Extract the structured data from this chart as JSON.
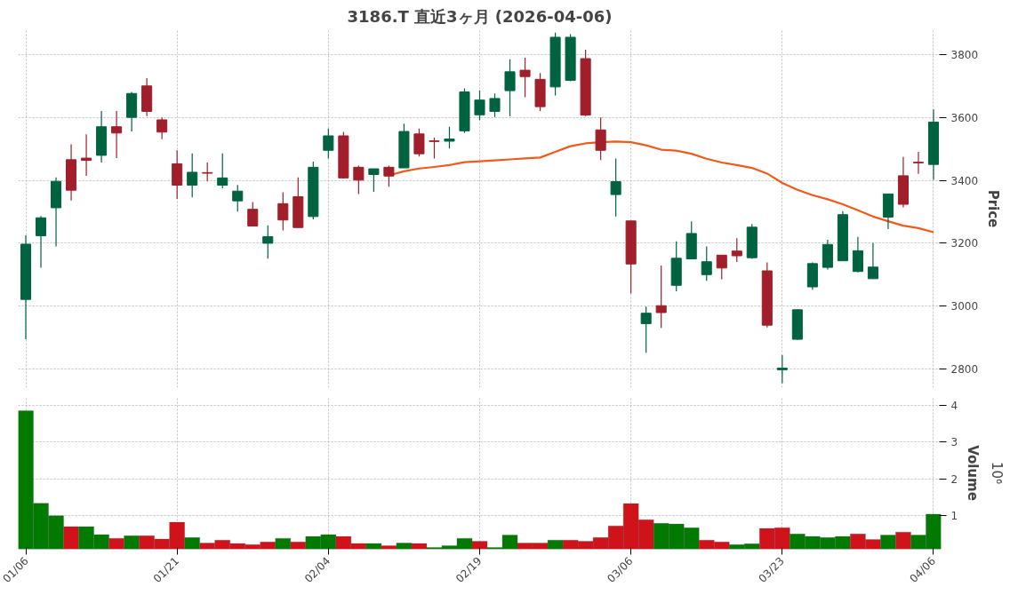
{
  "chart_data": [
    {
      "type": "candlestick",
      "title": "3186.T 直近3ヶ月 (2026-04-06)",
      "ylabel": "Price",
      "ohlc": [
        [
          3021,
          3225,
          2894,
          3197
        ],
        [
          3224,
          3287,
          3122,
          3281
        ],
        [
          3313,
          3410,
          3190,
          3397
        ],
        [
          3466,
          3515,
          3336,
          3369
        ],
        [
          3471,
          3547,
          3415,
          3464
        ],
        [
          3480,
          3621,
          3457,
          3571
        ],
        [
          3571,
          3621,
          3471,
          3551
        ],
        [
          3601,
          3682,
          3556,
          3677
        ],
        [
          3701,
          3726,
          3605,
          3620
        ],
        [
          3593,
          3601,
          3531,
          3554
        ],
        [
          3453,
          3496,
          3341,
          3385
        ],
        [
          3385,
          3486,
          3346,
          3426
        ],
        [
          3425,
          3457,
          3397,
          3423
        ],
        [
          3385,
          3486,
          3375,
          3408
        ],
        [
          3335,
          3386,
          3301,
          3366
        ],
        [
          3308,
          3331,
          3255,
          3255
        ],
        [
          3200,
          3257,
          3151,
          3221
        ],
        [
          3326,
          3362,
          3241,
          3274
        ],
        [
          3348,
          3410,
          3250,
          3250
        ],
        [
          3285,
          3460,
          3276,
          3442
        ],
        [
          3496,
          3565,
          3470,
          3542
        ],
        [
          3542,
          3555,
          3406,
          3408
        ],
        [
          3442,
          3447,
          3357,
          3401
        ],
        [
          3419,
          3437,
          3364,
          3437
        ],
        [
          3442,
          3447,
          3380,
          3414
        ],
        [
          3440,
          3581,
          3440,
          3556
        ],
        [
          3548,
          3565,
          3476,
          3485
        ],
        [
          3526,
          3536,
          3470,
          3524
        ],
        [
          3525,
          3571,
          3502,
          3532
        ],
        [
          3558,
          3693,
          3551,
          3682
        ],
        [
          3609,
          3687,
          3592,
          3656
        ],
        [
          3620,
          3677,
          3602,
          3661
        ],
        [
          3686,
          3786,
          3605,
          3746
        ],
        [
          3751,
          3791,
          3665,
          3731
        ],
        [
          3722,
          3742,
          3621,
          3635
        ],
        [
          3698,
          3871,
          3671,
          3856
        ],
        [
          3719,
          3866,
          3716,
          3856
        ],
        [
          3788,
          3816,
          3605,
          3608
        ],
        [
          3561,
          3601,
          3465,
          3496
        ],
        [
          3355,
          3470,
          3285,
          3396
        ],
        [
          3271,
          3271,
          3040,
          3134
        ],
        [
          2944,
          2998,
          2851,
          2977
        ],
        [
          3001,
          3129,
          2930,
          2979
        ],
        [
          3066,
          3206,
          3047,
          3152
        ],
        [
          3150,
          3270,
          3150,
          3231
        ],
        [
          3100,
          3190,
          3080,
          3141
        ],
        [
          3162,
          3162,
          3085,
          3121
        ],
        [
          3175,
          3216,
          3140,
          3160
        ],
        [
          3154,
          3261,
          3150,
          3251
        ],
        [
          3112,
          3139,
          2932,
          2939
        ],
        [
          2797,
          2844,
          2754,
          2802
        ],
        [
          2894,
          2988,
          2892,
          2988
        ],
        [
          3061,
          3139,
          3052,
          3135
        ],
        [
          3123,
          3211,
          3116,
          3196
        ],
        [
          3144,
          3302,
          3144,
          3291
        ],
        [
          3110,
          3220,
          3107,
          3176
        ],
        [
          3087,
          3201,
          3087,
          3124
        ],
        [
          3283,
          3357,
          3245,
          3357
        ],
        [
          3415,
          3475,
          3314,
          3324
        ],
        [
          3458,
          3491,
          3421,
          3456
        ],
        [
          3451,
          3626,
          3402,
          3586
        ]
      ],
      "colors": [
        "#006340",
        "#006340",
        "#006340",
        "#a01f2a",
        "#a01f2a",
        "#006340",
        "#a01f2a",
        "#006340",
        "#a01f2a",
        "#a01f2a",
        "#a01f2a",
        "#006340",
        "#a01f2a",
        "#006340",
        "#006340",
        "#a01f2a",
        "#006340",
        "#a01f2a",
        "#a01f2a",
        "#006340",
        "#006340",
        "#a01f2a",
        "#a01f2a",
        "#006340",
        "#a01f2a",
        "#006340",
        "#a01f2a",
        "#a01f2a",
        "#006340",
        "#006340",
        "#006340",
        "#006340",
        "#006340",
        "#a01f2a",
        "#a01f2a",
        "#006340",
        "#006340",
        "#a01f2a",
        "#a01f2a",
        "#006340",
        "#a01f2a",
        "#006340",
        "#a01f2a",
        "#006340",
        "#006340",
        "#006340",
        "#a01f2a",
        "#a01f2a",
        "#006340",
        "#a01f2a",
        "#006340",
        "#006340",
        "#006340",
        "#006340",
        "#006340",
        "#006340",
        "#006340",
        "#006340",
        "#a01f2a",
        "#a01f2a",
        "#006340"
      ],
      "series": [
        {
          "type": "line",
          "color": "#f05a1a",
          "values": [
            null,
            null,
            null,
            null,
            null,
            null,
            null,
            null,
            null,
            null,
            null,
            null,
            null,
            null,
            null,
            null,
            null,
            null,
            null,
            null,
            null,
            null,
            null,
            null,
            3416,
            3429,
            3438,
            3443,
            3449,
            3458,
            3461,
            3464,
            3467,
            3470,
            3473,
            3491,
            3509,
            3518,
            3522,
            3524,
            3522,
            3512,
            3498,
            3495,
            3485,
            3469,
            3457,
            3449,
            3440,
            3422,
            3392,
            3370,
            3353,
            3340,
            3324,
            3305,
            3285,
            3270,
            3256,
            3248,
            3235
          ]
        }
      ],
      "ylim": [
        2740,
        3880
      ],
      "yticks": [
        2800,
        3000,
        3200,
        3400,
        3600,
        3800
      ],
      "grid": true,
      "tick_labels": "y"
    },
    {
      "type": "bar",
      "ylabel": "Volume",
      "annotations": [
        "10⁶"
      ],
      "categories": [
        "01/06",
        null,
        null,
        null,
        null,
        null,
        null,
        null,
        null,
        null,
        "01/21",
        null,
        null,
        null,
        null,
        null,
        null,
        null,
        null,
        null,
        "02/04",
        null,
        null,
        null,
        null,
        null,
        null,
        null,
        null,
        null,
        "02/19",
        null,
        null,
        null,
        null,
        null,
        null,
        null,
        null,
        null,
        "03/06",
        null,
        null,
        null,
        null,
        null,
        null,
        null,
        null,
        null,
        "03/23",
        null,
        null,
        null,
        null,
        null,
        null,
        null,
        null,
        null,
        "04/06"
      ],
      "values": [
        3.86,
        1.33,
        0.99,
        0.69,
        0.69,
        0.47,
        0.37,
        0.44,
        0.44,
        0.35,
        0.81,
        0.39,
        0.24,
        0.32,
        0.23,
        0.2,
        0.27,
        0.37,
        0.27,
        0.42,
        0.47,
        0.42,
        0.23,
        0.23,
        0.17,
        0.24,
        0.23,
        0.12,
        0.17,
        0.37,
        0.29,
        0.12,
        0.46,
        0.24,
        0.24,
        0.32,
        0.32,
        0.29,
        0.39,
        0.71,
        1.32,
        0.88,
        0.78,
        0.76,
        0.66,
        0.32,
        0.27,
        0.2,
        0.22,
        0.64,
        0.66,
        0.49,
        0.42,
        0.39,
        0.42,
        0.49,
        0.34,
        0.46,
        0.54,
        0.46,
        1.03
      ],
      "colors": [
        "#007a00",
        "#007a00",
        "#007a00",
        "#d0121b",
        "#007a00",
        "#007a00",
        "#d0121b",
        "#007a00",
        "#d0121b",
        "#d0121b",
        "#d0121b",
        "#007a00",
        "#d0121b",
        "#d0121b",
        "#d0121b",
        "#d0121b",
        "#d0121b",
        "#007a00",
        "#d0121b",
        "#007a00",
        "#007a00",
        "#d0121b",
        "#d0121b",
        "#007a00",
        "#d0121b",
        "#007a00",
        "#d0121b",
        "#007a00",
        "#007a00",
        "#007a00",
        "#d0121b",
        "#007a00",
        "#007a00",
        "#d0121b",
        "#d0121b",
        "#007a00",
        "#d0121b",
        "#d0121b",
        "#d0121b",
        "#d0121b",
        "#d0121b",
        "#d0121b",
        "#007a00",
        "#007a00",
        "#007a00",
        "#d0121b",
        "#d0121b",
        "#007a00",
        "#007a00",
        "#d0121b",
        "#d0121b",
        "#007a00",
        "#007a00",
        "#007a00",
        "#007a00",
        "#d0121b",
        "#d0121b",
        "#007a00",
        "#d0121b",
        "#007a00",
        "#007a00"
      ],
      "ylim": [
        0.07,
        4.25
      ],
      "yticks": [
        1,
        2,
        3,
        4
      ],
      "grid": true
    }
  ]
}
